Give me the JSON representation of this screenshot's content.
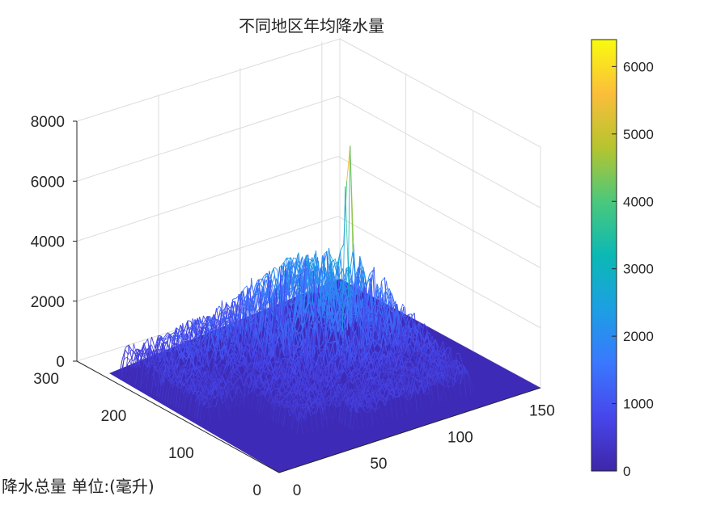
{
  "chart_data": {
    "type": "surface",
    "title": "不同地区年均降水量",
    "ylabel": "降水总量 单位:(毫升)",
    "xlabel": "",
    "zlabel": "",
    "x_ticks": [
      "0",
      "50",
      "100",
      "150"
    ],
    "y_ticks": [
      "0",
      "100",
      "200",
      "300"
    ],
    "z_ticks": [
      "0",
      "2000",
      "4000",
      "6000",
      "8000"
    ],
    "xlim": [
      0,
      160
    ],
    "ylim": [
      0,
      300
    ],
    "zlim": [
      0,
      8000
    ],
    "colorbar": {
      "ticks": [
        "0",
        "1000",
        "2000",
        "3000",
        "4000",
        "5000",
        "6000"
      ],
      "range": [
        0,
        6400
      ],
      "colormap": "parula"
    },
    "grid": true,
    "peak": {
      "x": 125,
      "y": 200,
      "z": 5700
    },
    "colors": {
      "floor": "#3d2bb8",
      "low": "#3e26a8",
      "mid": "#2a8ef0",
      "high": "#f9fb0e"
    }
  }
}
